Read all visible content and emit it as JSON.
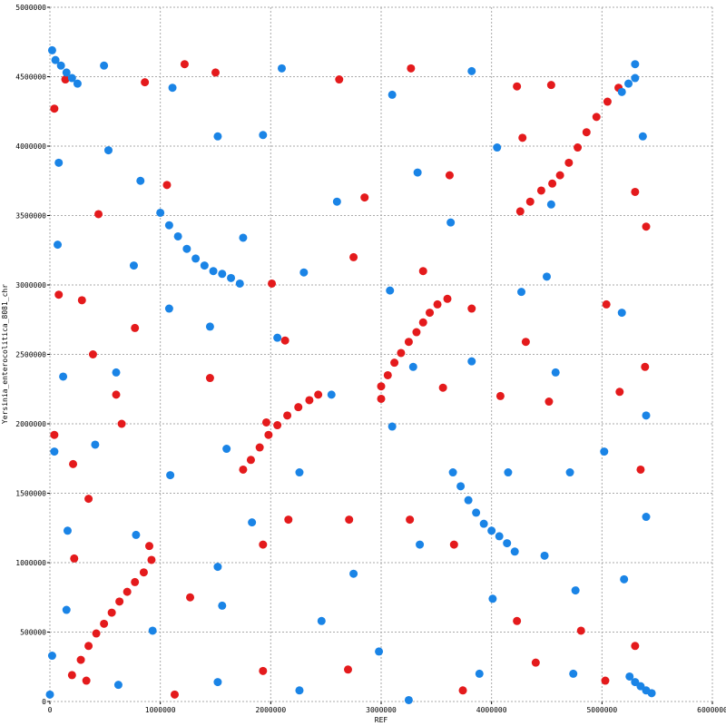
{
  "chart_data": {
    "type": "scatter",
    "xlabel": "REF",
    "ylabel": "Yersinia_enterocolitica_8081_chr",
    "xlim": [
      0,
      6000000
    ],
    "ylim": [
      0,
      5000000
    ],
    "xticks": [
      0,
      1000000,
      2000000,
      3000000,
      4000000,
      5000000,
      6000000
    ],
    "yticks": [
      0,
      500000,
      1000000,
      1500000,
      2000000,
      2500000,
      3000000,
      3500000,
      4000000,
      4500000,
      5000000
    ],
    "grid": true,
    "series": [
      {
        "color": "#e41a1c",
        "x": [
          200000,
          280000,
          350000,
          420000,
          490000,
          560000,
          630000,
          700000,
          770000,
          850000,
          920000,
          1750000,
          1820000,
          1900000,
          1980000,
          2060000,
          2150000,
          2250000,
          2350000,
          2430000,
          3000000,
          3060000,
          3120000,
          3180000,
          3250000,
          3320000,
          3380000,
          3440000,
          3510000,
          3600000,
          4260000,
          4350000,
          4450000,
          4550000,
          4620000,
          4700000,
          4780000,
          4860000,
          4950000,
          5050000,
          5150000,
          40000,
          140000,
          860000,
          1220000,
          1500000,
          2620000,
          3270000,
          4230000,
          4540000,
          440000,
          1060000,
          2850000,
          3620000,
          4280000,
          5300000,
          5400000,
          80000,
          290000,
          390000,
          770000,
          2010000,
          2130000,
          2750000,
          3380000,
          3820000,
          4310000,
          5040000,
          5390000,
          40000,
          210000,
          600000,
          650000,
          1450000,
          1960000,
          3000000,
          3560000,
          4080000,
          4520000,
          5160000,
          5350000,
          220000,
          350000,
          900000,
          1270000,
          1930000,
          2160000,
          2710000,
          3260000,
          3660000,
          4230000,
          4810000,
          5300000,
          330000,
          1130000,
          1930000,
          2700000,
          3740000,
          4400000,
          5030000
        ],
        "y": [
          190000,
          300000,
          400000,
          490000,
          560000,
          640000,
          720000,
          790000,
          860000,
          930000,
          1020000,
          1670000,
          1740000,
          1830000,
          1920000,
          1990000,
          2060000,
          2120000,
          2170000,
          2210000,
          2270000,
          2350000,
          2440000,
          2510000,
          2590000,
          2660000,
          2730000,
          2800000,
          2860000,
          2900000,
          3530000,
          3600000,
          3680000,
          3730000,
          3790000,
          3880000,
          3990000,
          4100000,
          4210000,
          4320000,
          4420000,
          4270000,
          4480000,
          4460000,
          4590000,
          4530000,
          4480000,
          4560000,
          4430000,
          4440000,
          3510000,
          3720000,
          3630000,
          3790000,
          4060000,
          3670000,
          3420000,
          2930000,
          2890000,
          2500000,
          2690000,
          3010000,
          2600000,
          3200000,
          3100000,
          2830000,
          2590000,
          2860000,
          2410000,
          1920000,
          1710000,
          2210000,
          2000000,
          2330000,
          2010000,
          2180000,
          2260000,
          2200000,
          2160000,
          2230000,
          1670000,
          1030000,
          1460000,
          1120000,
          750000,
          1130000,
          1310000,
          1310000,
          1310000,
          1130000,
          580000,
          510000,
          400000,
          150000,
          50000,
          220000,
          230000,
          80000,
          280000,
          150000
        ]
      },
      {
        "color": "#1a84e6",
        "x": [
          50000,
          100000,
          150000,
          200000,
          250000,
          1000000,
          1080000,
          1160000,
          1240000,
          1320000,
          1400000,
          1480000,
          1560000,
          1640000,
          1720000,
          3650000,
          3720000,
          3790000,
          3860000,
          3930000,
          4000000,
          4070000,
          4140000,
          4210000,
          5250000,
          5300000,
          5350000,
          5400000,
          5450000,
          5180000,
          5240000,
          5300000,
          20000,
          490000,
          1110000,
          2100000,
          3100000,
          3820000,
          5300000,
          80000,
          530000,
          820000,
          1520000,
          1930000,
          2600000,
          3330000,
          4050000,
          4540000,
          5370000,
          70000,
          760000,
          1080000,
          1750000,
          2300000,
          3080000,
          3630000,
          4270000,
          4500000,
          5180000,
          120000,
          600000,
          1450000,
          2060000,
          2550000,
          3290000,
          3820000,
          4580000,
          5400000,
          40000,
          410000,
          1090000,
          1600000,
          2260000,
          3100000,
          4150000,
          4710000,
          5020000,
          160000,
          780000,
          1520000,
          1830000,
          2750000,
          3350000,
          4480000,
          5400000,
          150000,
          930000,
          1560000,
          2460000,
          2980000,
          4010000,
          4760000,
          5200000,
          20000,
          620000,
          1520000,
          2260000,
          3250000,
          3890000,
          4740000,
          0
        ],
        "y": [
          4620000,
          4580000,
          4530000,
          4490000,
          4450000,
          3520000,
          3430000,
          3350000,
          3260000,
          3190000,
          3140000,
          3100000,
          3080000,
          3050000,
          3010000,
          1650000,
          1550000,
          1450000,
          1360000,
          1280000,
          1230000,
          1190000,
          1140000,
          1080000,
          180000,
          140000,
          110000,
          80000,
          60000,
          4390000,
          4450000,
          4490000,
          4690000,
          4580000,
          4420000,
          4560000,
          4370000,
          4540000,
          4590000,
          3880000,
          3970000,
          3750000,
          4070000,
          4080000,
          3600000,
          3810000,
          3990000,
          3580000,
          4070000,
          3290000,
          3140000,
          2830000,
          3340000,
          3090000,
          2960000,
          3450000,
          2950000,
          3060000,
          2800000,
          2340000,
          2370000,
          2700000,
          2620000,
          2210000,
          2410000,
          2450000,
          2370000,
          2060000,
          1800000,
          1850000,
          1630000,
          1820000,
          1650000,
          1980000,
          1650000,
          1650000,
          1800000,
          1230000,
          1200000,
          970000,
          1290000,
          920000,
          1130000,
          1050000,
          1330000,
          660000,
          510000,
          690000,
          580000,
          360000,
          740000,
          800000,
          880000,
          330000,
          120000,
          140000,
          80000,
          10000,
          200000,
          200000,
          50000
        ]
      }
    ]
  }
}
